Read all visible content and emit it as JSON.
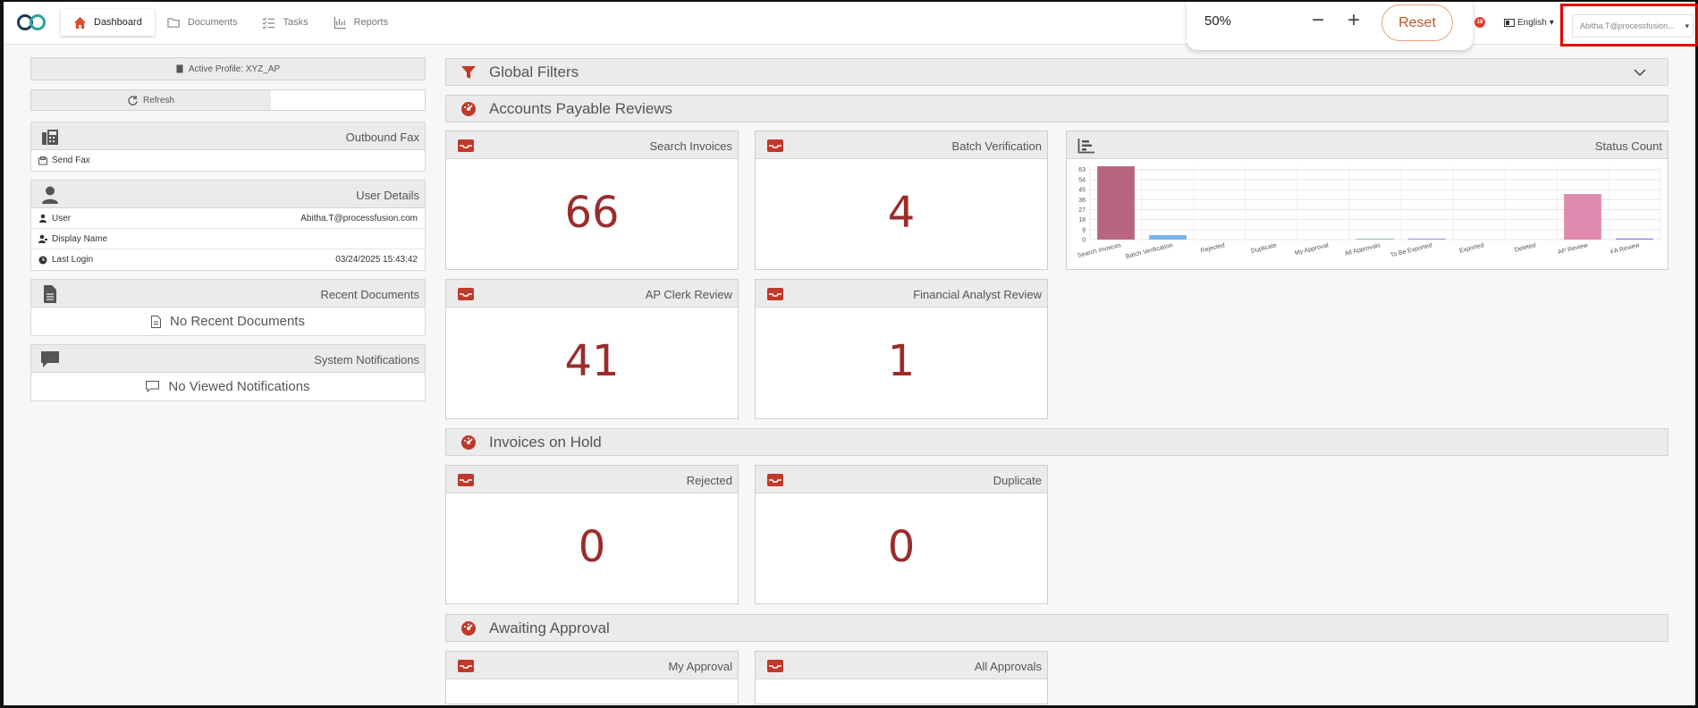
{
  "nav": {
    "items": [
      {
        "label": "Dashboard",
        "active": true
      },
      {
        "label": "Documents",
        "active": false
      },
      {
        "label": "Tasks",
        "active": false
      },
      {
        "label": "Reports",
        "active": false
      }
    ]
  },
  "zoom": {
    "value": "50%",
    "minus": "−",
    "plus": "+",
    "reset_label": "Reset"
  },
  "header": {
    "notification_count": "18",
    "language": "English",
    "user": "Abitha.T@processfusion..."
  },
  "left": {
    "active_profile": "Active Profile: XYZ_AP",
    "refresh_label": "Refresh",
    "outbound_fax": {
      "title": "Outbound Fax",
      "send_fax": "Send Fax"
    },
    "user_details": {
      "title": "User Details",
      "rows": [
        {
          "label": "User",
          "value": "Abitha.T@processfusion.com"
        },
        {
          "label": "Display Name",
          "value": ""
        },
        {
          "label": "Last Login",
          "value": "03/24/2025 15:43:42"
        }
      ]
    },
    "recent_documents": {
      "title": "Recent Documents",
      "empty": "No Recent Documents"
    },
    "system_notifications": {
      "title": "System Notifications",
      "empty": "No Viewed Notifications"
    }
  },
  "sections": {
    "global_filters": "Global Filters",
    "ap_reviews": "Accounts Payable Reviews",
    "invoices_on_hold": "Invoices on Hold",
    "awaiting_approval": "Awaiting Approval"
  },
  "cards": {
    "search_invoices": {
      "title": "Search Invoices",
      "count": "66"
    },
    "batch_verification": {
      "title": "Batch Verification",
      "count": "4"
    },
    "ap_clerk_review": {
      "title": "AP Clerk Review",
      "count": "41"
    },
    "financial_analyst_review": {
      "title": "Financial Analyst Review",
      "count": "1"
    },
    "rejected": {
      "title": "Rejected",
      "count": "0"
    },
    "duplicate": {
      "title": "Duplicate",
      "count": "0"
    },
    "my_approval": {
      "title": "My Approval",
      "count": ""
    },
    "all_approvals": {
      "title": "All Approvals",
      "count": ""
    }
  },
  "status_chart": {
    "title": "Status Count"
  },
  "chart_data": {
    "type": "bar",
    "title": "Status Count",
    "categories": [
      "Search Invoices",
      "Batch Verification",
      "Rejected",
      "Duplicate",
      "My Approval",
      "All Approvals",
      "To Be Exported",
      "Exported",
      "Deleted",
      "AP Review",
      "FA Review"
    ],
    "values": [
      66,
      4,
      0,
      0,
      0,
      1,
      0.5,
      0,
      0,
      41,
      1
    ],
    "colors": [
      "#b8667f",
      "#7cb1e8",
      "#cccccc",
      "#cccccc",
      "#cccccc",
      "#9cc7b6",
      "#a99be0",
      "#cccccc",
      "#cccccc",
      "#e08ab0",
      "#9b7fd6"
    ],
    "yticks": [
      0,
      9,
      18,
      27,
      36,
      45,
      54,
      63
    ],
    "ylim": [
      0,
      66
    ],
    "grid": true
  }
}
